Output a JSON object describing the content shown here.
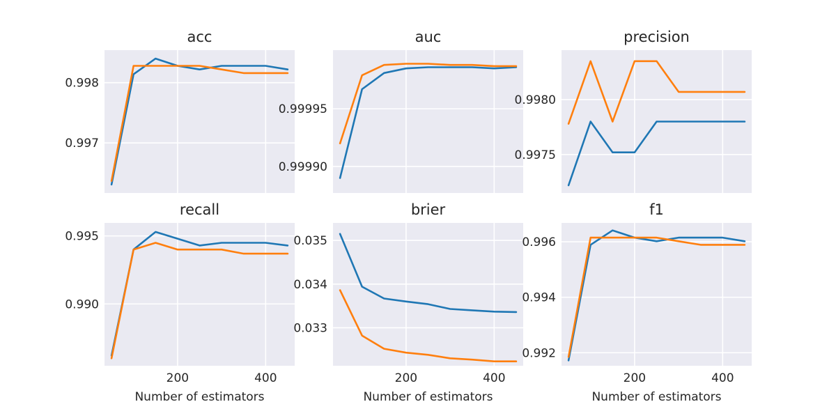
{
  "figure": {
    "background": "#ffffff",
    "axes_background": "#eaeaf2",
    "grid_color": "#ffffff",
    "text_color": "#262626",
    "series_colors": [
      "#1f77b4",
      "#ff7f0e"
    ]
  },
  "chart_data": [
    {
      "type": "line",
      "title": "acc",
      "xlabel": "",
      "ylabel": "",
      "x": [
        50,
        100,
        150,
        200,
        250,
        300,
        350,
        400,
        450
      ],
      "xlim": [
        34,
        466
      ],
      "ylim": [
        0.99617,
        0.99854
      ],
      "xticks": [
        200,
        400
      ],
      "yticks": [
        0.997,
        0.998
      ],
      "ytick_labels": [
        "0.997",
        "0.998"
      ],
      "grid": true,
      "series": [
        {
          "color": "#1f77b4",
          "values": [
            0.99631,
            0.99814,
            0.9984,
            0.99828,
            0.99822,
            0.99828,
            0.99828,
            0.99828,
            0.99822
          ]
        },
        {
          "color": "#ff7f0e",
          "values": [
            0.99637,
            0.99828,
            0.99828,
            0.99828,
            0.99828,
            0.99822,
            0.99816,
            0.99816,
            0.99816
          ]
        }
      ]
    },
    {
      "type": "line",
      "title": "auc",
      "xlabel": "",
      "ylabel": "",
      "x": [
        50,
        100,
        150,
        200,
        250,
        300,
        350,
        400,
        450
      ],
      "xlim": [
        34,
        466
      ],
      "ylim": [
        0.999877,
        0.100002
      ],
      "ylim_note": "",
      "xticks": [
        200,
        400
      ],
      "yticks": [
        0.9999,
        0.99995
      ],
      "ytick_labels": [
        "0.99990",
        "0.99995"
      ],
      "grid": true,
      "series": [
        {
          "color": "#1f77b4",
          "values": [
            0.99989,
            0.999967,
            0.999981,
            0.999985,
            0.999986,
            0.999986,
            0.999986,
            0.999985,
            0.999986
          ]
        },
        {
          "color": "#ff7f0e",
          "values": [
            0.99992,
            0.999979,
            0.999988,
            0.999989,
            0.999989,
            0.999988,
            0.999988,
            0.999987,
            0.999987
          ]
        }
      ]
    },
    {
      "type": "line",
      "title": "precision",
      "xlabel": "",
      "ylabel": "",
      "x": [
        50,
        100,
        150,
        200,
        250,
        300,
        350,
        400,
        450
      ],
      "xlim": [
        34,
        466
      ],
      "ylim": [
        0.99715,
        0.99845
      ],
      "xticks": [
        200,
        400
      ],
      "yticks": [
        0.9975,
        0.998
      ],
      "ytick_labels": [
        "0.9975",
        "0.9980"
      ],
      "grid": true,
      "series": [
        {
          "color": "#1f77b4",
          "values": [
            0.99722,
            0.9978,
            0.99752,
            0.99752,
            0.9978,
            0.9978,
            0.9978,
            0.9978,
            0.9978
          ]
        },
        {
          "color": "#ff7f0e",
          "values": [
            0.99778,
            0.99835,
            0.9978,
            0.99835,
            0.99835,
            0.99807,
            0.99807,
            0.99807,
            0.99807
          ]
        }
      ]
    },
    {
      "type": "line",
      "title": "recall",
      "xlabel": "Number of estimators",
      "ylabel": "",
      "x": [
        50,
        100,
        150,
        200,
        250,
        300,
        350,
        400,
        450
      ],
      "xlim": [
        34,
        466
      ],
      "ylim": [
        0.98545,
        0.99596
      ],
      "xticks": [
        200,
        400
      ],
      "yticks": [
        0.99,
        0.995
      ],
      "ytick_labels": [
        "0.990",
        "0.995"
      ],
      "grid": true,
      "series": [
        {
          "color": "#1f77b4",
          "values": [
            0.9862,
            0.994,
            0.9953,
            0.9948,
            0.9943,
            0.9945,
            0.9945,
            0.9945,
            0.9943
          ]
        },
        {
          "color": "#ff7f0e",
          "values": [
            0.986,
            0.994,
            0.9945,
            0.994,
            0.994,
            0.994,
            0.9937,
            0.9937,
            0.9937
          ]
        }
      ]
    },
    {
      "type": "line",
      "title": "brier",
      "xlabel": "Number of estimators",
      "ylabel": "",
      "x": [
        50,
        100,
        150,
        200,
        250,
        300,
        350,
        400,
        450
      ],
      "xlim": [
        34,
        466
      ],
      "ylim": [
        0.03213,
        0.0354
      ],
      "xticks": [
        200,
        400
      ],
      "yticks": [
        0.033,
        0.034,
        0.035
      ],
      "ytick_labels": [
        "0.033",
        "0.034",
        "0.035"
      ],
      "grid": true,
      "series": [
        {
          "color": "#1f77b4",
          "values": [
            0.03515,
            0.03394,
            0.03367,
            0.0336,
            0.03354,
            0.03343,
            0.0334,
            0.03337,
            0.03336
          ]
        },
        {
          "color": "#ff7f0e",
          "values": [
            0.03386,
            0.03282,
            0.03252,
            0.03243,
            0.03238,
            0.0323,
            0.03227,
            0.03223,
            0.03223
          ]
        }
      ]
    },
    {
      "type": "line",
      "title": "f1",
      "xlabel": "Number of estimators",
      "ylabel": "",
      "x": [
        50,
        100,
        150,
        200,
        250,
        300,
        350,
        400,
        450
      ],
      "xlim": [
        34,
        466
      ],
      "ylim": [
        0.99153,
        0.99668
      ],
      "xticks": [
        200,
        400
      ],
      "yticks": [
        0.992,
        0.994,
        0.996
      ],
      "ytick_labels": [
        "0.992",
        "0.994",
        "0.996"
      ],
      "grid": true,
      "series": [
        {
          "color": "#1f77b4",
          "values": [
            0.99172,
            0.99589,
            0.99641,
            0.99615,
            0.99602,
            0.99615,
            0.99615,
            0.99615,
            0.99602
          ]
        },
        {
          "color": "#ff7f0e",
          "values": [
            0.99185,
            0.99615,
            0.99615,
            0.99615,
            0.99615,
            0.99602,
            0.99589,
            0.99589,
            0.99589
          ]
        }
      ]
    }
  ]
}
